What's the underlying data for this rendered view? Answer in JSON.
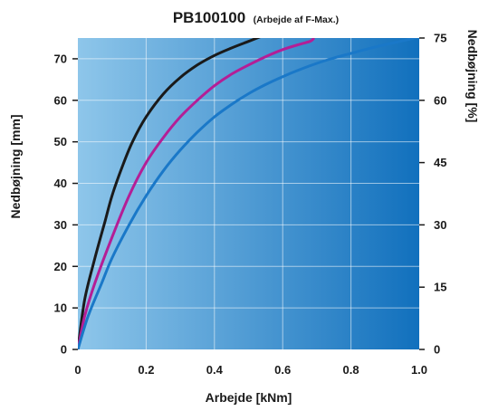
{
  "chart_data": {
    "type": "line",
    "title": "PB100100",
    "subtitle": "(Arbejde af F-Max.)",
    "xlabel": "Arbejde [kNm]",
    "ylabel": "Nedbøjning [mm]",
    "ylabel_right": "Nedbøjning [%]",
    "xlim": [
      0,
      1.0
    ],
    "ylim": [
      0,
      75
    ],
    "ylim_right": [
      0,
      75
    ],
    "x_ticks": [
      "0",
      "0.2",
      "0.4",
      "0.6",
      "0.8",
      "1.0"
    ],
    "x_tick_values": [
      0,
      0.2,
      0.4,
      0.6,
      0.8,
      1.0
    ],
    "y_ticks": [
      "0",
      "10",
      "20",
      "30",
      "40",
      "50",
      "60",
      "70"
    ],
    "y_tick_values": [
      0,
      10,
      20,
      30,
      40,
      50,
      60,
      70
    ],
    "y_ticks_right": [
      "0",
      "15",
      "30",
      "45",
      "60",
      "75"
    ],
    "y_tick_values_right": [
      0,
      15,
      30,
      45,
      60,
      75
    ],
    "grid": true,
    "background_gradient": [
      "#8ec6ea",
      "#1170bd"
    ],
    "series": [
      {
        "color": "#1a1a1a",
        "x": [
          0,
          0.02,
          0.05,
          0.08,
          0.1,
          0.13,
          0.16,
          0.2,
          0.25,
          0.3,
          0.35,
          0.4,
          0.45,
          0.5,
          0.54
        ],
        "y": [
          0,
          12,
          22,
          31,
          37,
          44,
          50,
          56,
          61.5,
          65.5,
          68.5,
          70.8,
          72.6,
          74.2,
          75.5
        ]
      },
      {
        "color": "#b41e96",
        "x": [
          0,
          0.02,
          0.05,
          0.1,
          0.15,
          0.2,
          0.25,
          0.3,
          0.35,
          0.4,
          0.45,
          0.5,
          0.55,
          0.6,
          0.65,
          0.68,
          0.69
        ],
        "y": [
          0,
          8,
          16,
          27,
          37,
          45,
          51,
          56,
          60,
          63.5,
          66.3,
          68.5,
          70.5,
          72.2,
          73.5,
          74.2,
          74.8
        ]
      },
      {
        "color": "#1a78c8",
        "x": [
          0,
          0.03,
          0.07,
          0.1,
          0.15,
          0.2,
          0.25,
          0.3,
          0.35,
          0.4,
          0.45,
          0.5,
          0.55,
          0.6,
          0.65,
          0.7,
          0.75,
          0.8,
          0.85,
          0.9,
          0.95,
          1.0
        ],
        "y": [
          0,
          8,
          16,
          22,
          30,
          37,
          43,
          48,
          52.3,
          56,
          59,
          61.6,
          63.8,
          65.7,
          67.4,
          68.9,
          70.2,
          71.3,
          72.4,
          73.4,
          74.3,
          75.3
        ]
      }
    ]
  }
}
